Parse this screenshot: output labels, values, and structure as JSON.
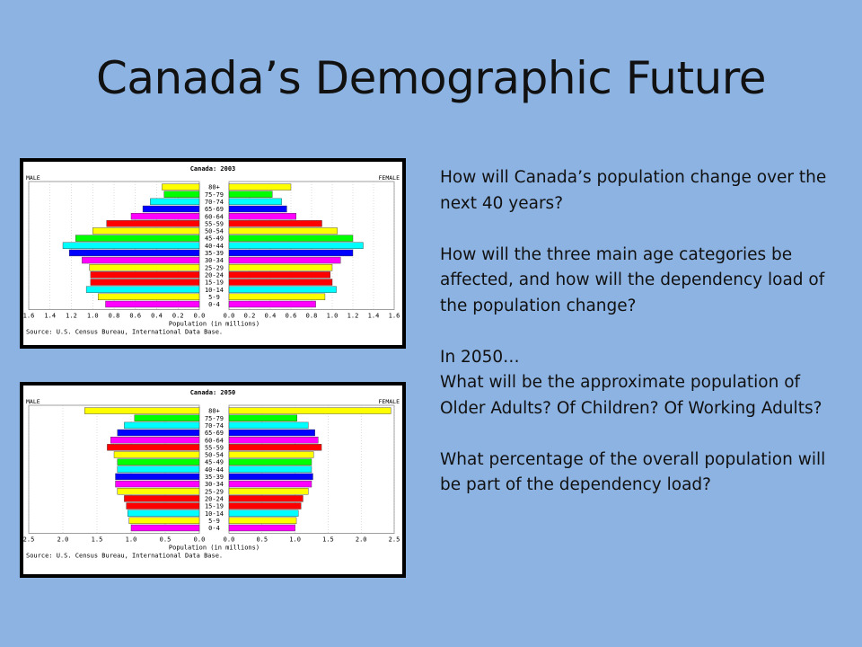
{
  "slide": {
    "title": "Canada’s Demographic Future",
    "q1": "How will Canada’s population change over the next 40 years?",
    "q2": "How will the three main age categories be affected, and how will the dependency load of the population change?",
    "q3_intro": "In 2050…",
    "q3": "What will be the approximate population of Older Adults?  Of Children?  Of Working Adults?",
    "q4": "What percentage of the overall population will be part of the dependency load?"
  },
  "colors": {
    "background": "#8DB3E2",
    "bar_colors_by_age_young_to_old": [
      "#FF00FF",
      "#FFFF00",
      "#00FFFF",
      "#FF0000",
      "#FF0000",
      "#FFFF00",
      "#FF00FF",
      "#0000FF",
      "#00FFFF",
      "#00FF00",
      "#FFFF00",
      "#FF0000",
      "#FF00FF",
      "#0000FF",
      "#00FFFF",
      "#00FF00",
      "#FFFF00"
    ]
  },
  "chart_data": [
    {
      "type": "bar",
      "title": "Canada: 2003",
      "left_label": "MALE",
      "right_label": "FEMALE",
      "xlabel": "Population (in millions)",
      "source": "Source: U.S. Census Bureau, International Data Base.",
      "xlim": [
        0,
        1.6
      ],
      "ticks": [
        "1.6",
        "1.4",
        "1.2",
        "1.0",
        "0.8",
        "0.6",
        "0.4",
        "0.2",
        "0.0",
        "0.0",
        "0.2",
        "0.4",
        "0.6",
        "0.8",
        "1.0",
        "1.2",
        "1.4",
        "1.6"
      ],
      "categories": [
        "80+",
        "75-79",
        "70-74",
        "65-69",
        "60-64",
        "55-59",
        "50-54",
        "45-49",
        "40-44",
        "35-39",
        "30-34",
        "25-29",
        "20-24",
        "15-19",
        "10-14",
        "5-9",
        "0-4"
      ],
      "series": [
        {
          "name": "MALE",
          "values": [
            0.35,
            0.33,
            0.46,
            0.53,
            0.64,
            0.87,
            1.0,
            1.16,
            1.28,
            1.22,
            1.1,
            1.03,
            1.02,
            1.02,
            1.06,
            0.95,
            0.88
          ]
        },
        {
          "name": "FEMALE",
          "values": [
            0.6,
            0.42,
            0.51,
            0.56,
            0.65,
            0.9,
            1.05,
            1.2,
            1.3,
            1.2,
            1.08,
            1.0,
            0.98,
            1.0,
            1.04,
            0.93,
            0.84
          ]
        }
      ]
    },
    {
      "type": "bar",
      "title": "Canada: 2050",
      "left_label": "MALE",
      "right_label": "FEMALE",
      "xlabel": "Population (in millions)",
      "source": "Source: U.S. Census Bureau, International Data Base.",
      "xlim": [
        0,
        2.5
      ],
      "ticks": [
        "2.5",
        "2.0",
        "1.5",
        "1.0",
        "0.5",
        "0.0",
        "0.0",
        "0.5",
        "1.0",
        "1.5",
        "2.0",
        "2.5"
      ],
      "categories": [
        "80+",
        "75-79",
        "70-74",
        "65-69",
        "60-64",
        "55-59",
        "50-54",
        "45-49",
        "40-44",
        "35-39",
        "30-34",
        "25-29",
        "20-24",
        "15-19",
        "10-14",
        "5-9",
        "0-4"
      ],
      "series": [
        {
          "name": "MALE",
          "values": [
            1.68,
            0.95,
            1.1,
            1.2,
            1.3,
            1.35,
            1.25,
            1.2,
            1.2,
            1.23,
            1.23,
            1.2,
            1.1,
            1.07,
            1.05,
            1.03,
            1.0
          ]
        },
        {
          "name": "FEMALE",
          "values": [
            2.45,
            1.03,
            1.2,
            1.3,
            1.35,
            1.4,
            1.28,
            1.25,
            1.25,
            1.27,
            1.25,
            1.2,
            1.12,
            1.09,
            1.05,
            1.02,
            1.0
          ]
        }
      ]
    }
  ]
}
